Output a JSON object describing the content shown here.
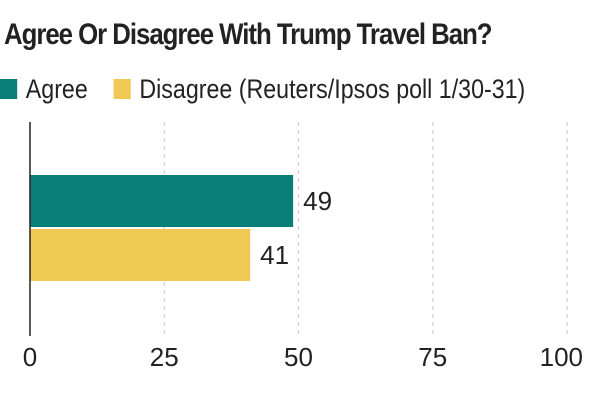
{
  "chart_data": {
    "type": "bar",
    "orientation": "horizontal",
    "title": "Agree Or Disagree With Trump Travel Ban?",
    "series": [
      {
        "name": "Agree",
        "value": 49,
        "color": "#0a7f7a"
      },
      {
        "name": "Disagree (Reuters/Ipsos poll 1/30-31)",
        "value": 41,
        "color": "#f0c954"
      }
    ],
    "xlim": [
      0,
      100
    ],
    "xticks": [
      0,
      25,
      50,
      75,
      100
    ],
    "grid": "vertical-dashed",
    "legend_position": "top-left"
  }
}
